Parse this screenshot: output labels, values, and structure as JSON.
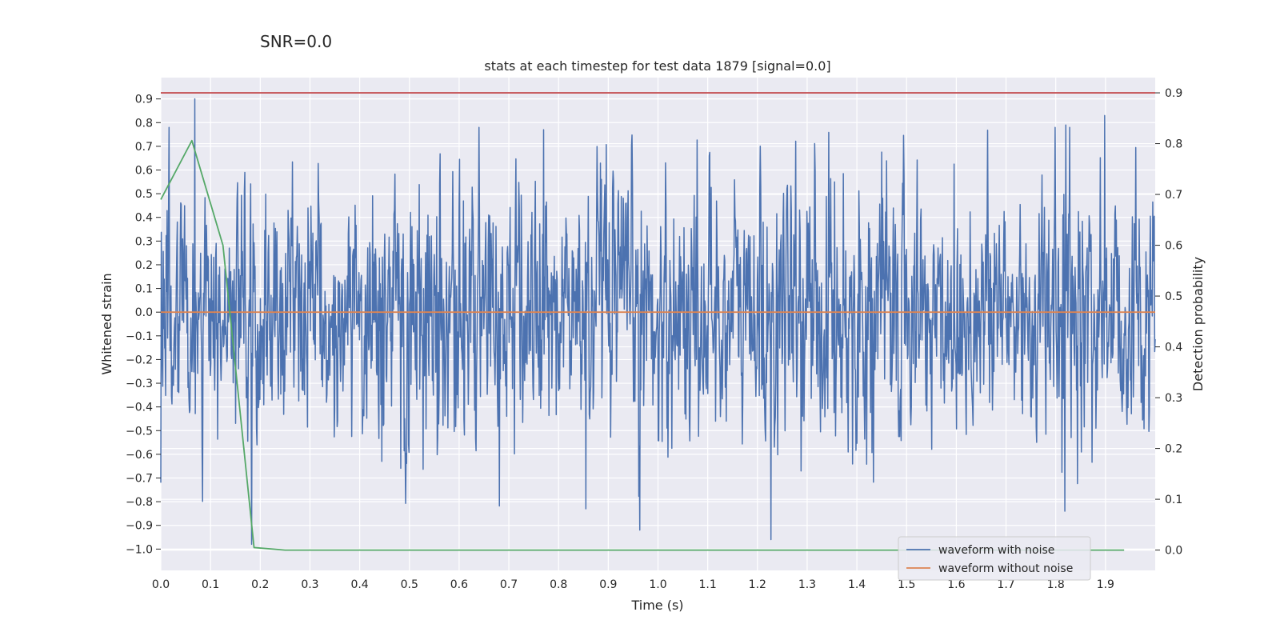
{
  "suptitle": "SNR=0.0",
  "chart_data": {
    "type": "line",
    "title": "stats at each timestep for test data 1879 [signal=0.0]",
    "xlabel": "Time (s)",
    "ylabel": "Whitened strain",
    "y2label": "Detection probability",
    "xlim": [
      0.0,
      2.0
    ],
    "ylim": [
      -1.09,
      0.99
    ],
    "y2lim": [
      -0.04,
      0.93
    ],
    "x_ticks": [
      "0.0",
      "0.1",
      "0.2",
      "0.3",
      "0.4",
      "0.5",
      "0.6",
      "0.7",
      "0.8",
      "0.9",
      "1.0",
      "1.1",
      "1.2",
      "1.3",
      "1.4",
      "1.5",
      "1.6",
      "1.7",
      "1.8",
      "1.9"
    ],
    "y_ticks": [
      "0.9",
      "0.8",
      "0.7",
      "0.6",
      "0.5",
      "0.4",
      "0.3",
      "0.2",
      "0.1",
      "0.0",
      "−0.1",
      "−0.2",
      "−0.3",
      "−0.4",
      "−0.5",
      "−0.6",
      "−0.7",
      "−0.8",
      "−0.9",
      "−1.0"
    ],
    "y2_ticks": [
      "0.9",
      "0.8",
      "0.7",
      "0.6",
      "0.5",
      "0.4",
      "0.3",
      "0.2",
      "0.1",
      "0.0"
    ],
    "grid": true,
    "legend": "bottom-right",
    "series": [
      {
        "name": "waveform with noise",
        "axis": "left",
        "color": "#4c72b0",
        "style": "noise",
        "x_range": [
          0.0,
          2.0
        ],
        "samples": 2048,
        "amplitude_std": 0.27,
        "peaks": [
          [
            0.068,
            0.9
          ],
          [
            0.0,
            -0.72
          ],
          [
            0.183,
            -0.98
          ],
          [
            0.963,
            -0.92
          ],
          [
            1.227,
            -0.96
          ],
          [
            1.898,
            0.83
          ],
          [
            1.82,
            0.79
          ],
          [
            0.855,
            -0.83
          ],
          [
            1.818,
            -0.84
          ],
          [
            0.77,
            0.77
          ]
        ]
      },
      {
        "name": "waveform without noise",
        "axis": "left",
        "color": "#dd8452",
        "x": [
          0.0,
          2.0
        ],
        "y": [
          0.0,
          0.0
        ]
      },
      {
        "name": "",
        "axis": "right",
        "color": "#55a868",
        "x": [
          0.0,
          0.0625,
          0.125,
          0.1875,
          0.25,
          0.3125,
          0.375,
          0.4375,
          0.5,
          0.5625,
          0.625,
          0.6875,
          0.75,
          0.8125,
          0.875,
          0.9375,
          1.0,
          1.0625,
          1.125,
          1.1875,
          1.25,
          1.3125,
          1.375,
          1.4375,
          1.5,
          1.5625,
          1.625,
          1.6875,
          1.75,
          1.8125,
          1.875,
          1.9375
        ],
        "y": [
          0.69,
          0.806,
          0.6,
          0.005,
          0.0,
          0.0,
          0.0,
          0.0,
          0.0,
          0.0,
          0.0,
          0.0,
          0.0,
          0.0,
          0.0,
          0.0,
          0.0,
          0.0,
          0.0,
          0.0,
          0.0,
          0.0,
          0.0,
          0.0,
          0.0,
          0.0,
          0.0,
          0.0,
          0.0,
          0.0,
          0.0,
          0.0
        ]
      },
      {
        "name": "",
        "axis": "right",
        "color": "#c44e52",
        "x": [
          0.0,
          2.0
        ],
        "y": [
          0.9,
          0.9
        ]
      }
    ]
  }
}
